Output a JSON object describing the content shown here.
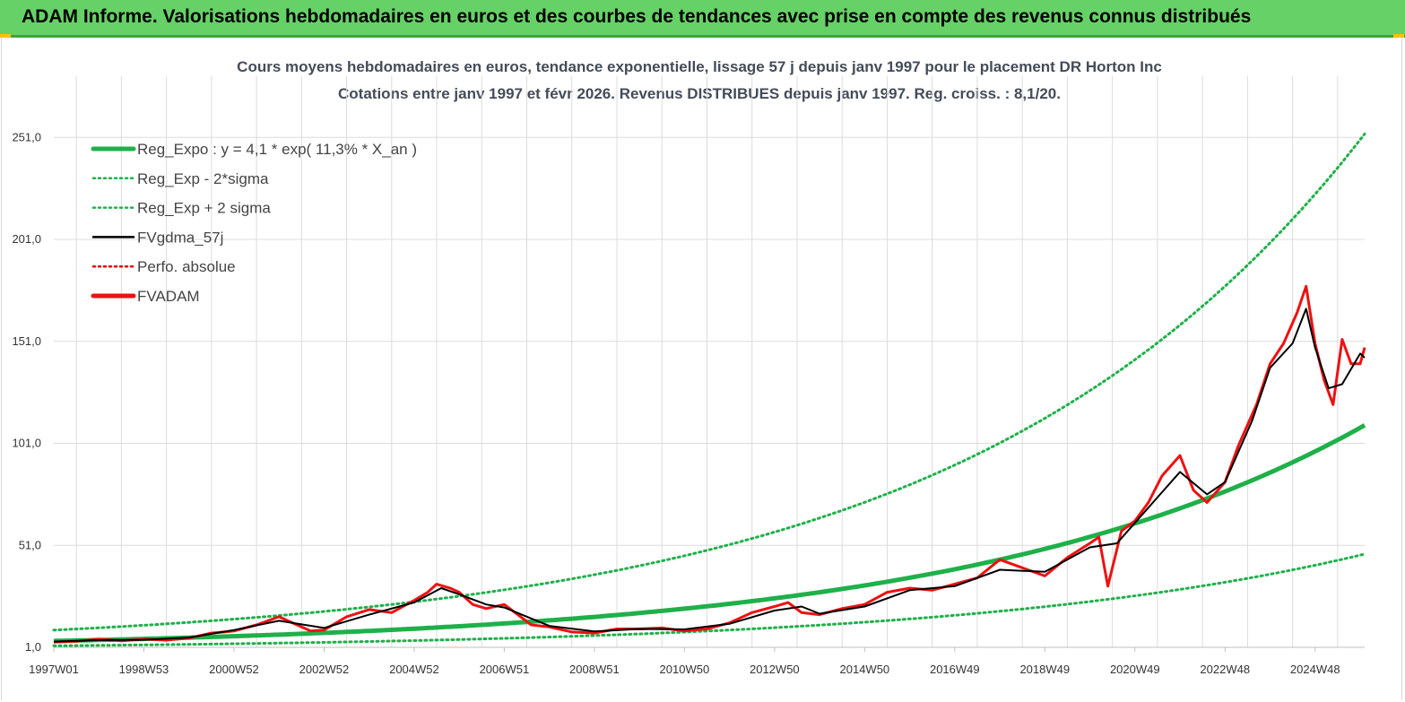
{
  "header": {
    "title": "ADAM Informe. Valorisations hebdomadaires en euros et des courbes de tendances avec prise en compte des revenus connus distribués"
  },
  "colors": {
    "banner": "#66d166",
    "trend": "#1fb04a",
    "band": "#1fb04a",
    "smooth": "#000000",
    "perf": "#e00000",
    "fvadam": "#ee1111",
    "grid": "#dcdcdc"
  },
  "chart_data": {
    "type": "line",
    "title_line1": "Cours moyens hebdomadaires en euros, tendance exponentielle, lissage 57 j depuis janv 1997 pour le placement DR Horton Inc",
    "title_line2": "Cotations entre janv 1997 et févr 2026. Revenus DISTRIBUES depuis janv 1997. Reg. croiss. : 8,1/20.",
    "xlabel": "",
    "ylabel": "",
    "xlim": [
      1997.0,
      2026.1
    ],
    "ylim": [
      1.0,
      281.0
    ],
    "y_ticks": [
      1.0,
      51.0,
      101.0,
      151.0,
      201.0,
      251.0
    ],
    "y_tick_labels": [
      "1,0",
      "51,0",
      "101,0",
      "151,0",
      "201,0",
      "251,0"
    ],
    "x_ticks": [
      {
        "label": "1997W01",
        "x": 1997.0
      },
      {
        "label": "1998W53",
        "x": 1999.0
      },
      {
        "label": "2000W52",
        "x": 2001.0
      },
      {
        "label": "2002W52",
        "x": 2003.0
      },
      {
        "label": "2004W52",
        "x": 2005.0
      },
      {
        "label": "2006W51",
        "x": 2007.0
      },
      {
        "label": "2008W51",
        "x": 2009.0
      },
      {
        "label": "2010W50",
        "x": 2011.0
      },
      {
        "label": "2012W50",
        "x": 2013.0
      },
      {
        "label": "2014W50",
        "x": 2015.0
      },
      {
        "label": "2016W49",
        "x": 2017.0
      },
      {
        "label": "2018W49",
        "x": 2019.0
      },
      {
        "label": "2020W49",
        "x": 2021.0
      },
      {
        "label": "2022W48",
        "x": 2023.0
      },
      {
        "label": "2024W48",
        "x": 2025.0
      }
    ],
    "legend": [
      {
        "label": "Reg_Expo : y = 4,1 * exp( 11,3% *  X_an )",
        "style": "solid-thick",
        "color": "#1fb04a"
      },
      {
        "label": "Reg_Exp - 2*sigma",
        "style": "dotted",
        "color": "#1fb04a"
      },
      {
        "label": "Reg_Exp + 2 sigma",
        "style": "dotted",
        "color": "#1fb04a"
      },
      {
        "label": "FVgdma_57j",
        "style": "solid",
        "color": "#000000"
      },
      {
        "label": "Perfo. absolue",
        "style": "dotted",
        "color": "#e00000"
      },
      {
        "label": "FVADAM",
        "style": "solid-thick",
        "color": "#ee1111"
      }
    ],
    "trend": {
      "a": 4.1,
      "b": 0.113,
      "lower_factor": 0.425,
      "upper_factor": 2.3
    },
    "series": [
      {
        "name": "FVADAM",
        "x": [
          1997.0,
          1997.5,
          1998.0,
          1998.5,
          1999.0,
          1999.5,
          2000.0,
          2000.5,
          2001.0,
          2001.5,
          2002.0,
          2002.3,
          2002.7,
          2003.0,
          2003.5,
          2004.0,
          2004.5,
          2005.0,
          2005.3,
          2005.5,
          2005.8,
          2006.0,
          2006.3,
          2006.6,
          2007.0,
          2007.3,
          2007.6,
          2008.0,
          2008.5,
          2009.0,
          2009.5,
          2010.0,
          2010.5,
          2011.0,
          2011.5,
          2012.0,
          2012.5,
          2013.0,
          2013.3,
          2013.6,
          2014.0,
          2014.5,
          2015.0,
          2015.5,
          2016.0,
          2016.5,
          2017.0,
          2017.5,
          2018.0,
          2018.5,
          2019.0,
          2019.5,
          2020.0,
          2020.2,
          2020.4,
          2020.7,
          2021.0,
          2021.3,
          2021.6,
          2022.0,
          2022.3,
          2022.6,
          2023.0,
          2023.3,
          2023.7,
          2024.0,
          2024.3,
          2024.6,
          2024.8,
          2025.0,
          2025.2,
          2025.4,
          2025.6,
          2025.8,
          2026.0,
          2026.1
        ],
        "y": [
          3.5,
          4.0,
          5.0,
          4.2,
          5.0,
          4.5,
          5.5,
          8.0,
          9.0,
          12.0,
          16.0,
          13.0,
          9.0,
          9.5,
          16.0,
          19.5,
          18.0,
          24.0,
          28.0,
          32.0,
          30.0,
          28.0,
          22.0,
          20.0,
          22.0,
          17.0,
          12.0,
          11.0,
          8.5,
          8.0,
          10.0,
          10.0,
          10.5,
          9.0,
          10.0,
          13.0,
          18.0,
          21.0,
          23.0,
          18.0,
          17.0,
          20.0,
          22.0,
          28.0,
          30.0,
          29.0,
          32.0,
          35.0,
          44.0,
          40.0,
          36.0,
          45.0,
          52.0,
          55.0,
          31.0,
          58.0,
          63.0,
          72.0,
          85.0,
          95.0,
          78.0,
          72.0,
          82.0,
          100.0,
          120.0,
          140.0,
          150.0,
          165.0,
          178.0,
          150.0,
          132.0,
          120.0,
          152.0,
          140.0,
          140.0,
          148.0
        ]
      },
      {
        "name": "FVgdma_57j",
        "x": [
          1997.0,
          1998.0,
          1999.0,
          2000.0,
          2001.0,
          2002.0,
          2003.0,
          2004.0,
          2005.0,
          2005.6,
          2006.0,
          2006.6,
          2007.0,
          2008.0,
          2009.0,
          2010.0,
          2011.0,
          2012.0,
          2013.0,
          2013.6,
          2014.0,
          2015.0,
          2016.0,
          2017.0,
          2018.0,
          2019.0,
          2020.0,
          2020.6,
          2021.0,
          2021.6,
          2022.0,
          2022.6,
          2023.0,
          2023.6,
          2024.0,
          2024.5,
          2024.8,
          2025.0,
          2025.3,
          2025.6,
          2026.0,
          2026.1
        ],
        "y": [
          3.8,
          4.5,
          4.7,
          5.8,
          9.5,
          14.0,
          10.5,
          17.0,
          23.0,
          30.0,
          27.0,
          22.0,
          20.5,
          11.5,
          8.8,
          10.0,
          9.8,
          12.5,
          19.0,
          21.0,
          17.5,
          21.0,
          29.0,
          31.0,
          39.0,
          38.0,
          50.0,
          52.0,
          62.0,
          77.0,
          87.0,
          76.0,
          82.0,
          112.0,
          138.0,
          150.0,
          167.0,
          148.0,
          128.0,
          130.0,
          145.0,
          143.0
        ]
      }
    ]
  }
}
